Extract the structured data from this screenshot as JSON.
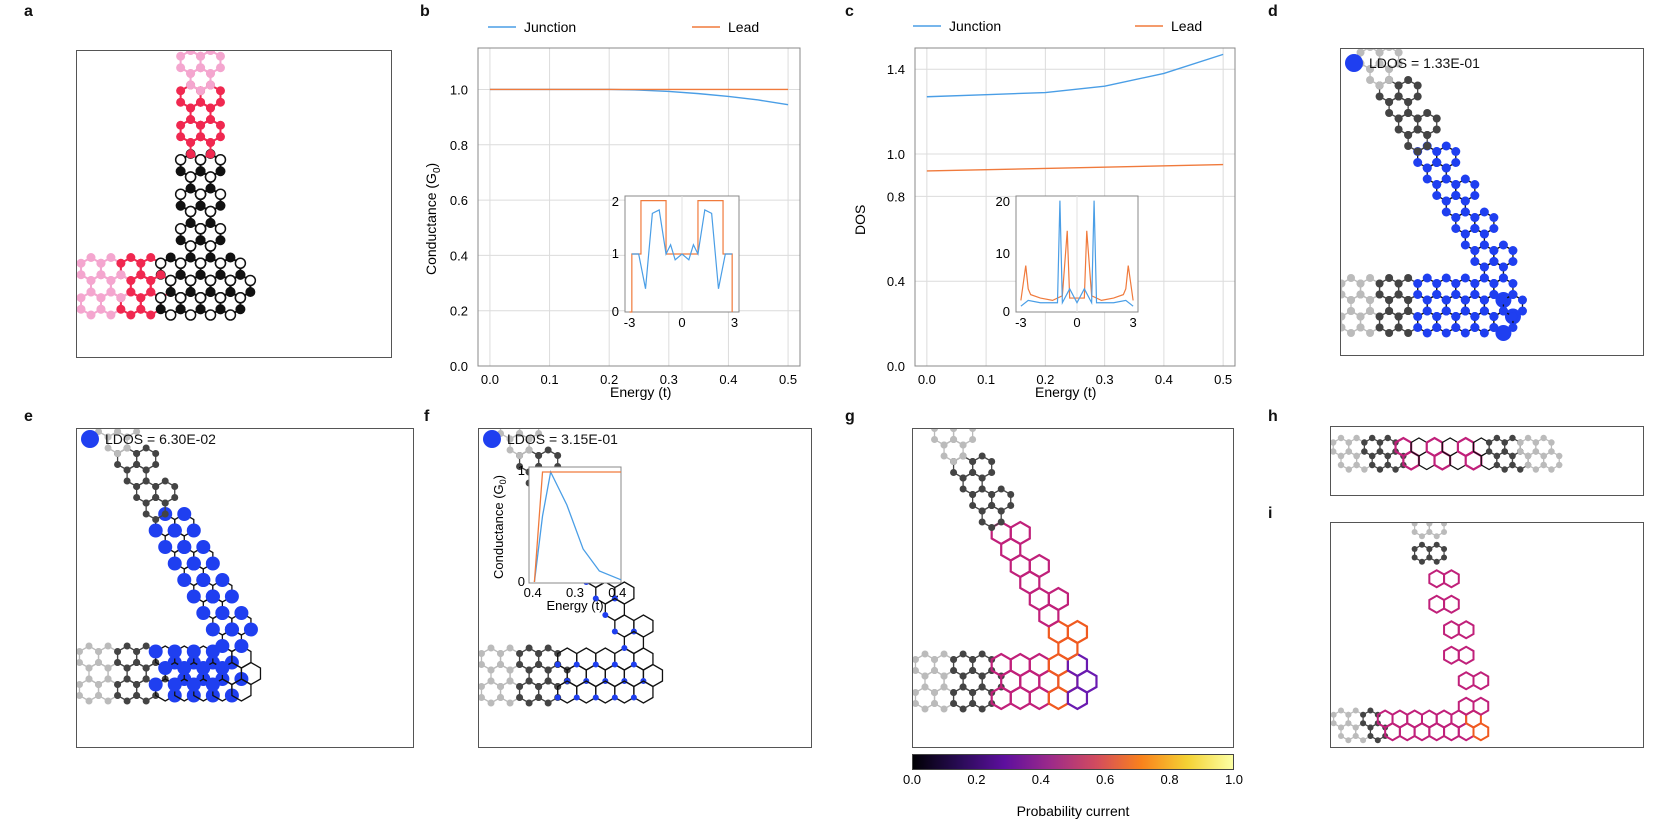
{
  "panels": {
    "a": "a",
    "b": "b",
    "c": "c",
    "d": "d",
    "e": "e",
    "f": "f",
    "g": "g",
    "h": "h",
    "i": "i"
  },
  "colors": {
    "junction": "#4a9ee6",
    "lead": "#f07a3c",
    "ldos": "#1f3ff0",
    "pink": "#f4a6cf",
    "red": "#f02850",
    "current": "#c0207a"
  },
  "b": {
    "legend": {
      "junction": "Junction",
      "lead": "Lead"
    },
    "xlabel": "Energy (t)",
    "ylabel": "Conductance (G",
    "ylabel_sub": "0",
    "ylabel_end": ")",
    "xticks": [
      "0.0",
      "0.1",
      "0.2",
      "0.3",
      "0.4",
      "0.5"
    ],
    "yticks": [
      "0.0",
      "0.2",
      "0.4",
      "0.6",
      "0.8",
      "1.0"
    ],
    "inset": {
      "xticks": [
        "-3",
        "0",
        "3"
      ],
      "yticks": [
        "0",
        "1",
        "2"
      ]
    }
  },
  "c": {
    "legend": {
      "junction": "Junction",
      "lead": "Lead"
    },
    "xlabel": "Energy (t)",
    "ylabel": "DOS",
    "xticks": [
      "0.0",
      "0.1",
      "0.2",
      "0.3",
      "0.4",
      "0.5"
    ],
    "yticks": [
      "0.0",
      "0.4",
      "0.8",
      "1.0",
      "1.4"
    ],
    "inset": {
      "xticks": [
        "-3",
        "0",
        "3"
      ],
      "yticks": [
        "0",
        "10",
        "20"
      ]
    }
  },
  "d": {
    "ldos_label": "LDOS = 1.33E-01"
  },
  "e": {
    "ldos_label": "LDOS = 6.30E-02"
  },
  "f": {
    "ldos_label": "LDOS = 3.15E-01",
    "inset": {
      "xlabel": "Energy (t)",
      "ylabel": "Conductance (G",
      "ylabel_sub": "0",
      "ylabel_end": ")",
      "xticks": [
        "0.4",
        "0.3",
        "0.4"
      ],
      "yticks": [
        "0",
        "1"
      ]
    }
  },
  "g": {
    "colorbar": {
      "label": "Probability current",
      "ticks": [
        "0.0",
        "0.2",
        "0.4",
        "0.6",
        "0.8",
        "1.0"
      ]
    }
  },
  "chart_data": [
    {
      "type": "line",
      "title": "b",
      "xlabel": "Energy (t)",
      "ylabel": "Conductance (G0)",
      "xlim": [
        -0.02,
        0.52
      ],
      "ylim": [
        0,
        1.15
      ],
      "series": [
        {
          "name": "Junction",
          "x": [
            0,
            0.1,
            0.2,
            0.25,
            0.3,
            0.35,
            0.4,
            0.45,
            0.5
          ],
          "values": [
            1.0,
            1.0,
            1.0,
            0.998,
            0.993,
            0.985,
            0.975,
            0.962,
            0.945
          ]
        },
        {
          "name": "Lead",
          "x": [
            0,
            0.5
          ],
          "values": [
            1.0,
            1.0
          ]
        }
      ]
    },
    {
      "type": "line",
      "title": "c",
      "xlabel": "Energy (t)",
      "ylabel": "DOS",
      "xlim": [
        -0.02,
        0.52
      ],
      "ylim": [
        0,
        1.5
      ],
      "series": [
        {
          "name": "Junction",
          "x": [
            0,
            0.1,
            0.2,
            0.3,
            0.4,
            0.5
          ],
          "values": [
            1.27,
            1.28,
            1.29,
            1.32,
            1.38,
            1.47
          ]
        },
        {
          "name": "Lead",
          "x": [
            0,
            0.5
          ],
          "values": [
            0.92,
            0.95
          ]
        }
      ]
    },
    {
      "type": "line",
      "title": "f inset",
      "xlabel": "Energy (t)",
      "ylabel": "Conductance (G0)",
      "ylim": [
        0,
        1
      ],
      "series": [
        {
          "name": "Junction",
          "x": [
            0.24,
            0.255,
            0.27,
            0.3,
            0.33,
            0.36,
            0.4
          ],
          "values": [
            0,
            0.6,
            1.0,
            0.7,
            0.3,
            0.1,
            0.02
          ]
        },
        {
          "name": "Lead",
          "x": [
            0.24,
            0.255,
            0.4
          ],
          "values": [
            0,
            1,
            1
          ]
        }
      ]
    }
  ]
}
